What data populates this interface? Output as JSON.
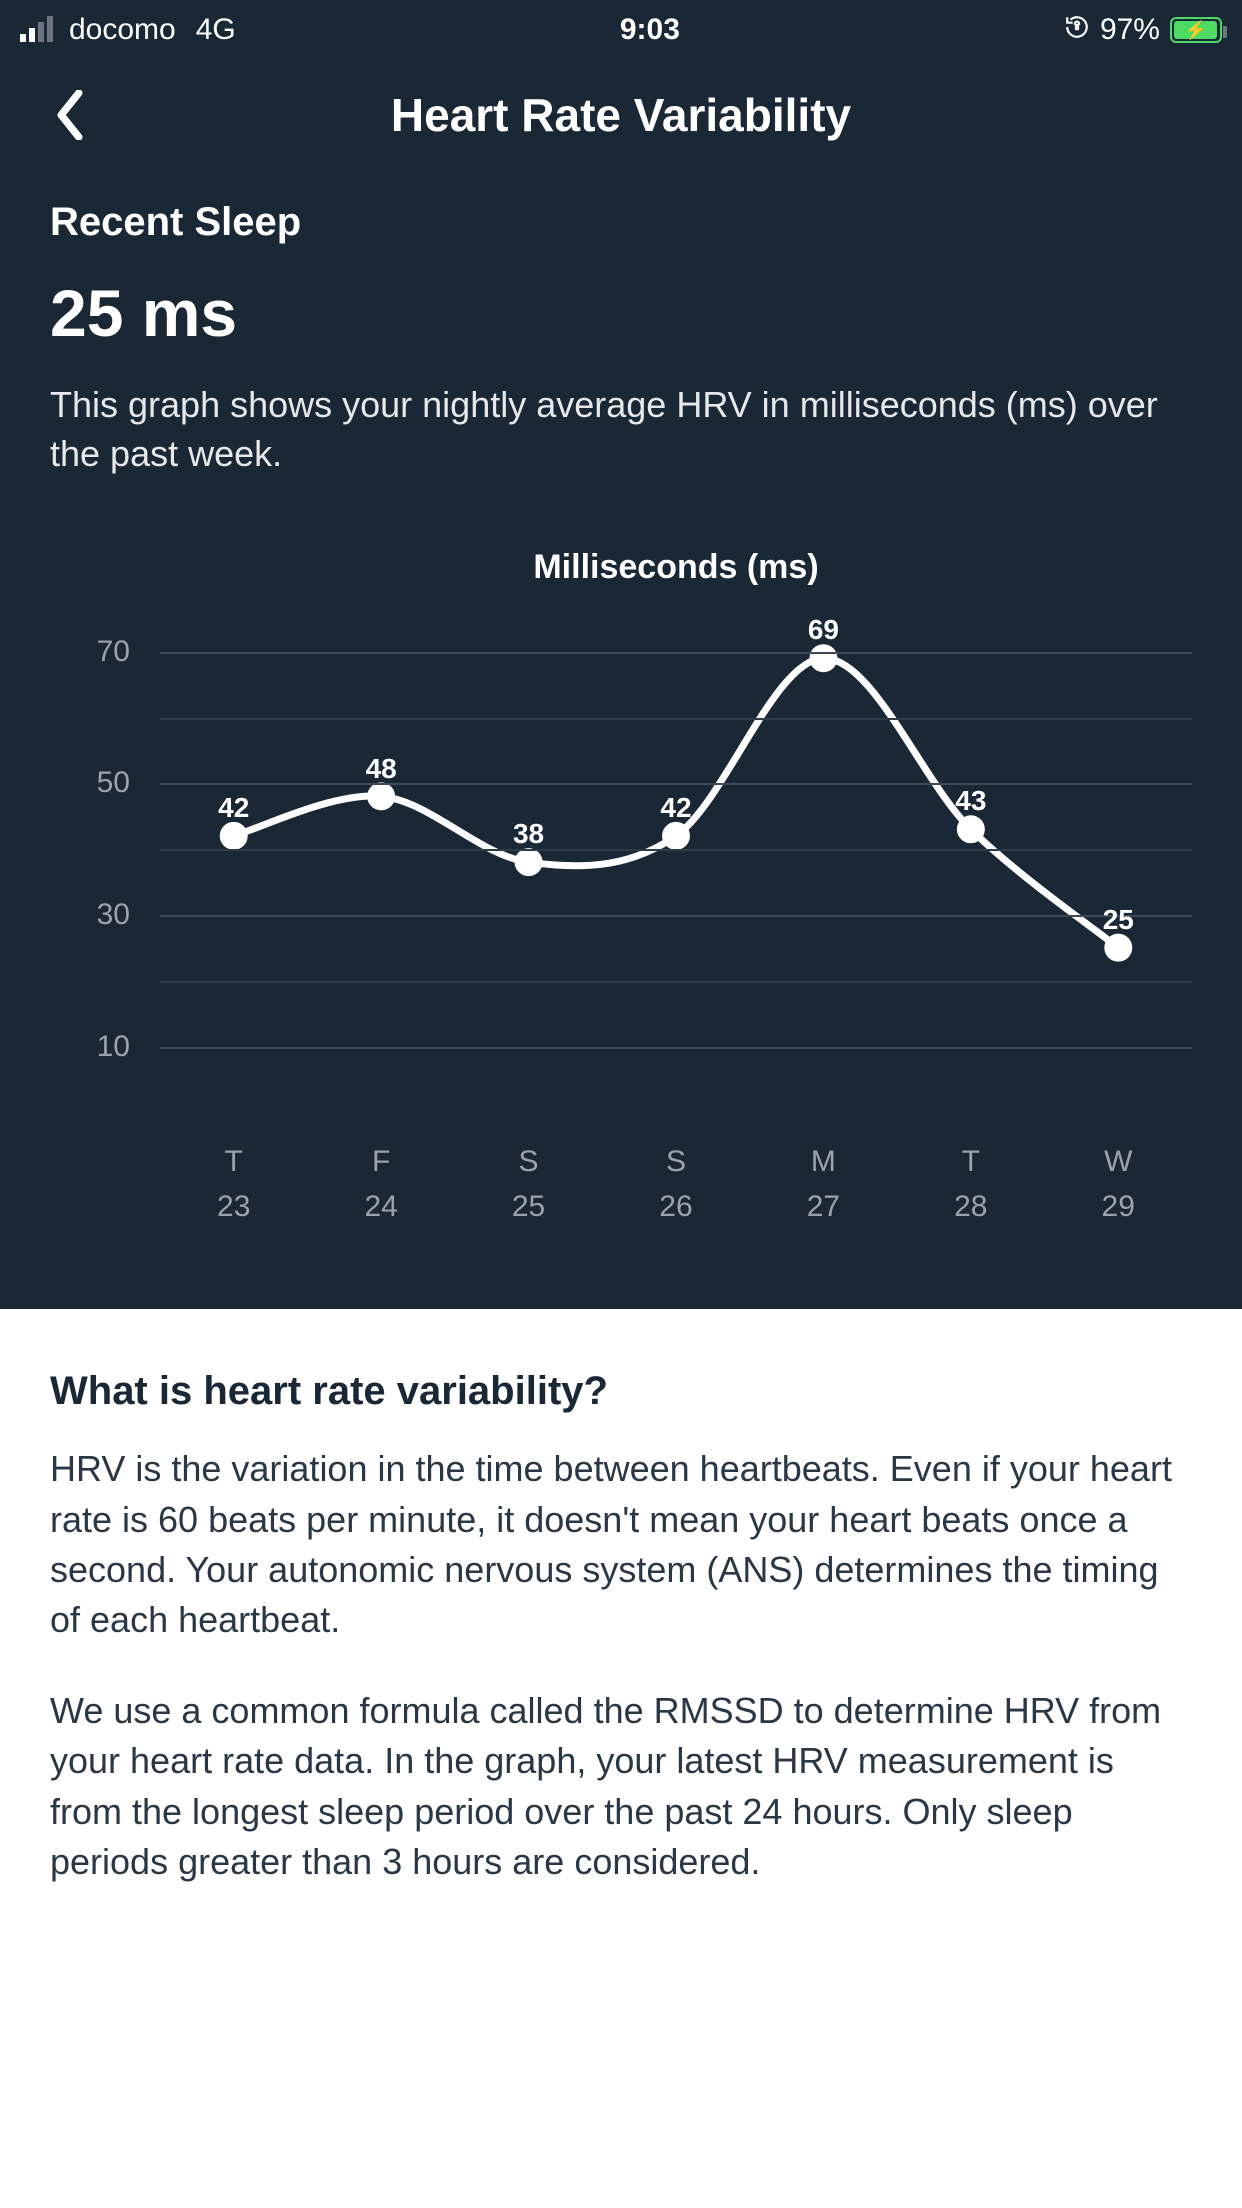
{
  "status_bar": {
    "carrier": "docomo",
    "network": "4G",
    "time": "9:03",
    "battery_pct_label": "97%",
    "battery_fill_pct": 97,
    "battery_color": "#4cd964",
    "signal_active_bars": 2,
    "orientation_lock_glyph": "⟳"
  },
  "header": {
    "title": "Heart Rate Variability"
  },
  "summary": {
    "section_title": "Recent Sleep",
    "value_label": "25 ms",
    "description": "This graph shows your nightly average HRV in milliseconds (ms) over the past week."
  },
  "chart": {
    "type": "line",
    "title": "Milliseconds (ms)",
    "background_color": "#1a2735",
    "grid_color_major": "#3d4a57",
    "grid_color_minor": "#2e3b48",
    "line_color": "#ffffff",
    "line_width": 7,
    "marker_radius": 14,
    "marker_fill": "#ffffff",
    "label_color": "#ffffff",
    "label_fontsize": 28,
    "axis_label_color": "#9aa3ab",
    "axis_label_fontsize": 30,
    "ylim": [
      2,
      78
    ],
    "y_ticks": [
      10,
      30,
      50,
      70
    ],
    "y_minor_ticks": [
      20,
      40,
      60
    ],
    "x_ticks": [
      {
        "dow": "T",
        "day": "23"
      },
      {
        "dow": "F",
        "day": "24"
      },
      {
        "dow": "S",
        "day": "25"
      },
      {
        "dow": "S",
        "day": "26"
      },
      {
        "dow": "M",
        "day": "27"
      },
      {
        "dow": "T",
        "day": "28"
      },
      {
        "dow": "W",
        "day": "29"
      }
    ],
    "values": [
      42,
      48,
      38,
      42,
      69,
      43,
      25
    ]
  },
  "info": {
    "title": "What is heart rate variability?",
    "para1": "HRV is the variation in the time between heartbeats. Even if your heart rate is 60 beats per minute, it doesn't mean your heart beats once a second. Your autonomic nervous system (ANS) determines the timing of each heartbeat.",
    "para2": "We use a common formula called the RMSSD to determine HRV from your heart rate data. In the graph, your latest HRV measurement is from the longest sleep period over the past 24 hours. Only sleep periods greater than 3 hours are considered."
  }
}
